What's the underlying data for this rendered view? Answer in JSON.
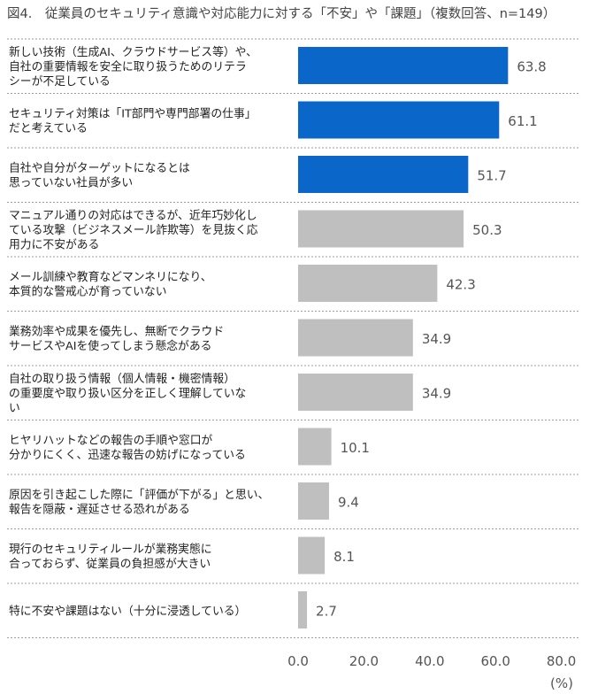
{
  "title": "図4.　従業員のセキュリティ意識や対応能力に対する「不安」や「課題」（複数回答、n=149）",
  "chart_data": {
    "type": "bar",
    "orientation": "horizontal",
    "categories": [
      [
        "新しい技術（生成AI、クラウドサービス等）や、",
        "自社の重要情報を安全に取り扱うためのリテラ",
        "シーが不足している"
      ],
      [
        "セキュリティ対策は「IT部門や専門部署の仕事」",
        "だと考えている"
      ],
      [
        "自社や自分がターゲットになるとは",
        "思っていない社員が多い"
      ],
      [
        "マニュアル通りの対応はできるが、近年巧妙化し",
        "ている攻撃（ビジネスメール詐欺等）を見抜く応",
        "用力に不安がある"
      ],
      [
        "メール訓練や教育などマンネリになり、",
        "本質的な警戒心が育っていない"
      ],
      [
        "業務効率や成果を優先し、無断でクラウド",
        "サービスやAIを使ってしまう懸念がある"
      ],
      [
        "自社の取り扱う情報（個人情報・機密情報）",
        "の重要度や取り扱い区分を正しく理解していな",
        "い"
      ],
      [
        "ヒヤリハットなどの報告の手順や窓口が",
        "分かりにくく、迅速な報告の妨げになっている"
      ],
      [
        "原因を引き起こした際に「評価が下がる」と思い、",
        "報告を隠蔽・遅延させる恐れがある"
      ],
      [
        "現行のセキュリティルールが業務実態に",
        "合っておらず、従業員の負担感が大きい"
      ],
      [
        "特に不安や課題はない（十分に浸透している）"
      ]
    ],
    "values": [
      63.8,
      61.1,
      51.7,
      50.3,
      42.3,
      34.9,
      34.9,
      10.1,
      9.4,
      8.1,
      2.7
    ],
    "value_labels": [
      "63.8",
      "61.1",
      "51.7",
      "50.3",
      "42.3",
      "34.9",
      "34.9",
      "10.1",
      "9.4",
      "8.1",
      "2.7"
    ],
    "highlight_count": 3,
    "colors": {
      "highlight": "#0b66c9",
      "normal": "#bfbfbf",
      "separator": "#9e9e9e"
    },
    "xlim": [
      0,
      80
    ],
    "x_ticks": [
      "0.0",
      "20.0",
      "40.0",
      "60.0",
      "80.0"
    ],
    "x_tick_values": [
      0,
      20,
      40,
      60,
      80
    ],
    "unit": "(%)",
    "grid": false
  }
}
